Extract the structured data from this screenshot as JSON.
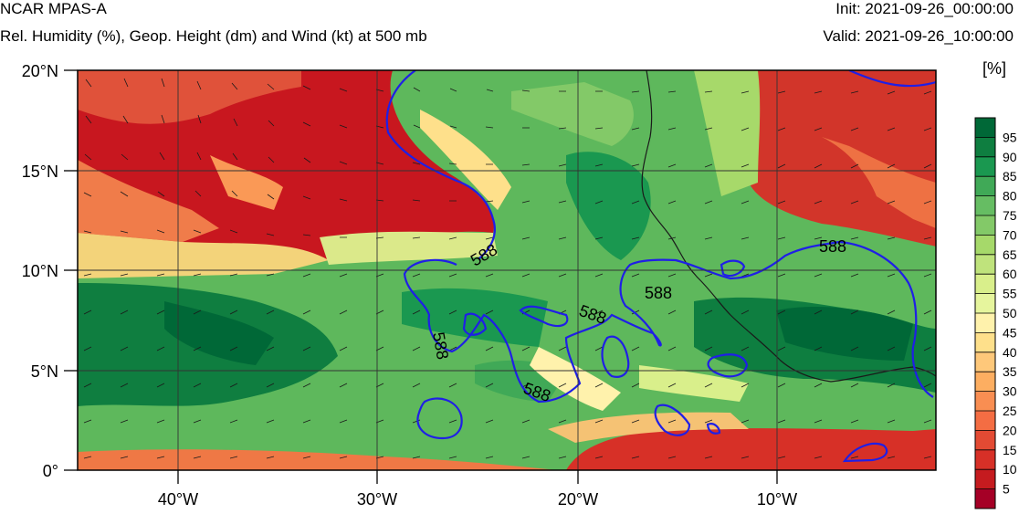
{
  "header": {
    "title": "NCAR MPAS-A",
    "subtitle": "Rel. Humidity (%), Geop. Height (dm) and Wind (kt) at 500 mb",
    "init": "Init: 2021-09-26_00:00:00",
    "valid": "Valid: 2021-09-26_10:00:00"
  },
  "map": {
    "lat_labels": [
      "20°N",
      "15°N",
      "10°N",
      "5°N",
      "0°"
    ],
    "lon_labels": [
      "40°W",
      "30°W",
      "20°W",
      "10°W"
    ],
    "contour_label": "588",
    "contour_color": "#1f1fe6"
  },
  "colorbar": {
    "units": "[%]",
    "ticks": [
      "95",
      "90",
      "85",
      "80",
      "75",
      "70",
      "65",
      "60",
      "55",
      "50",
      "45",
      "40",
      "35",
      "30",
      "25",
      "20",
      "15",
      "10",
      "5"
    ],
    "colors": [
      "#a50026",
      "#c51b1f",
      "#d73027",
      "#e34a33",
      "#f46d43",
      "#f98e52",
      "#fdae61",
      "#fec87a",
      "#fee08b",
      "#fff2ac",
      "#e6f59d",
      "#d9ef8b",
      "#bfe37c",
      "#a6d96a",
      "#83c968",
      "#66bd63",
      "#40a957",
      "#1a9850",
      "#0e7e40",
      "#006837"
    ]
  }
}
